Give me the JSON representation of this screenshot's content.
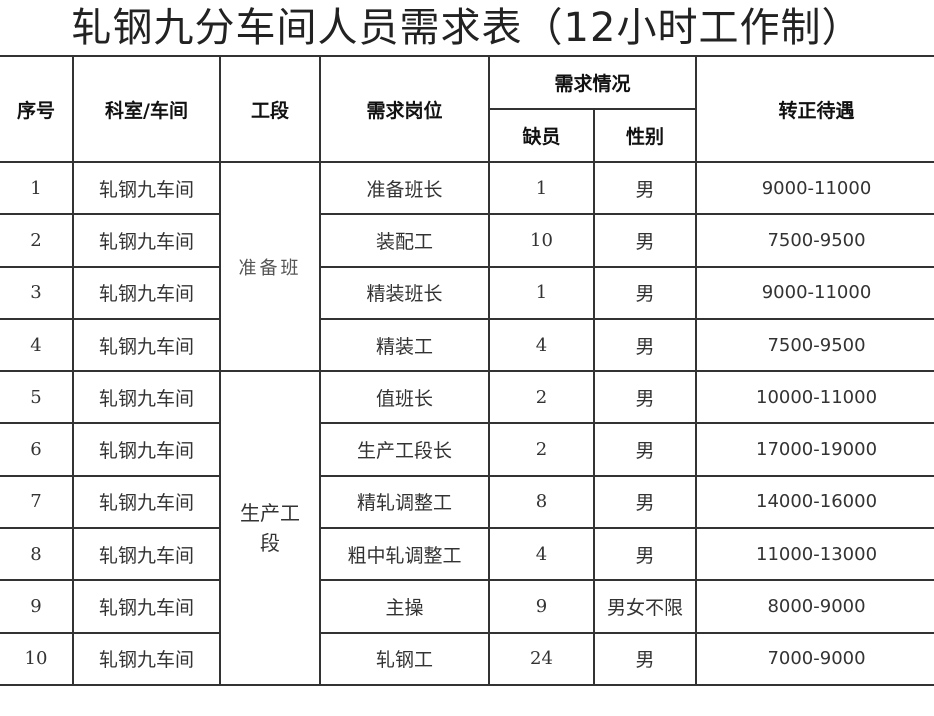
{
  "title": "轧钢九分车间人员需求表（12小时工作制）",
  "headers": {
    "index": "序号",
    "department": "科室/车间",
    "section": "工段",
    "position": "需求岗位",
    "demand": "需求情况",
    "shortage": "缺员",
    "gender": "性别",
    "salary": "转正待遇"
  },
  "sections": [
    "准备班",
    "生产工段"
  ],
  "rows": [
    {
      "index": "1",
      "department": "轧钢九车间",
      "position": "准备班长",
      "shortage": "1",
      "gender": "男",
      "salary": "9000-11000"
    },
    {
      "index": "2",
      "department": "轧钢九车间",
      "position": "装配工",
      "shortage": "10",
      "gender": "男",
      "salary": "7500-9500"
    },
    {
      "index": "3",
      "department": "轧钢九车间",
      "position": "精装班长",
      "shortage": "1",
      "gender": "男",
      "salary": "9000-11000"
    },
    {
      "index": "4",
      "department": "轧钢九车间",
      "position": "精装工",
      "shortage": "4",
      "gender": "男",
      "salary": "7500-9500"
    },
    {
      "index": "5",
      "department": "轧钢九车间",
      "position": "值班长",
      "shortage": "2",
      "gender": "男",
      "salary": "10000-11000"
    },
    {
      "index": "6",
      "department": "轧钢九车间",
      "position": "生产工段长",
      "shortage": "2",
      "gender": "男",
      "salary": "17000-19000"
    },
    {
      "index": "7",
      "department": "轧钢九车间",
      "position": "精轧调整工",
      "shortage": "8",
      "gender": "男",
      "salary": "14000-16000"
    },
    {
      "index": "8",
      "department": "轧钢九车间",
      "position": "粗中轧调整工",
      "shortage": "4",
      "gender": "男",
      "salary": "11000-13000"
    },
    {
      "index": "9",
      "department": "轧钢九车间",
      "position": "主操",
      "shortage": "9",
      "gender": "男女不限",
      "salary": "8000-9000"
    },
    {
      "index": "10",
      "department": "轧钢九车间",
      "position": "轧钢工",
      "shortage": "24",
      "gender": "男",
      "salary": "7000-9000"
    }
  ]
}
